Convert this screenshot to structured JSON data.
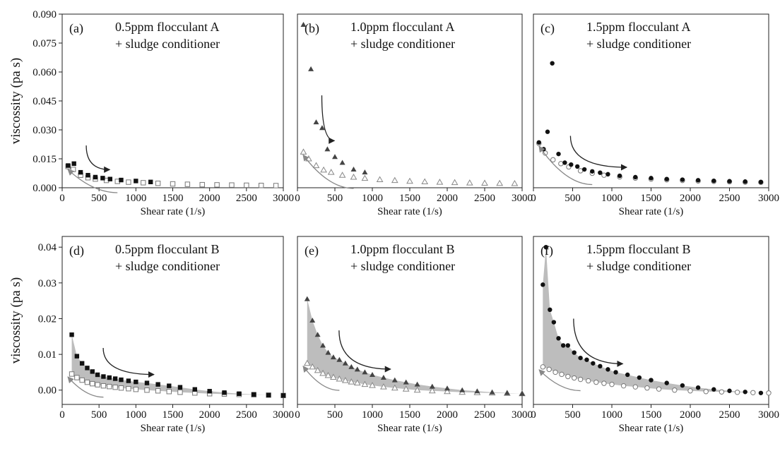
{
  "chart_data": [
    {
      "type": "scatter",
      "panel_label": "(a)",
      "annotation": [
        "0.5ppm flocculant A",
        "+ sludge conditioner"
      ],
      "xlabel": "Shear rate (1/s)",
      "ylabel": "viscossity (pa s)",
      "xlim": [
        0,
        3000
      ],
      "ylim": [
        0,
        0.09
      ],
      "xticks": [
        "0",
        "500",
        "1000",
        "1500",
        "2000",
        "2500",
        "3000"
      ],
      "yticks": [
        "0.000",
        "0.015",
        "0.030",
        "0.045",
        "0.060",
        "0.075",
        "0.090"
      ],
      "series": [
        {
          "marker": "filled-square",
          "x": [
            80,
            160,
            250,
            350,
            450,
            550,
            650,
            800,
            1000,
            1200
          ],
          "y": [
            0.0115,
            0.0125,
            0.008,
            0.0065,
            0.0055,
            0.005,
            0.0045,
            0.004,
            0.0035,
            0.003
          ]
        },
        {
          "marker": "open-square",
          "x": [
            80,
            150,
            250,
            350,
            450,
            600,
            750,
            900,
            1100,
            1300,
            1500,
            1700,
            1900,
            2100,
            2300,
            2500,
            2700,
            2900
          ],
          "y": [
            0.011,
            0.0095,
            0.0065,
            0.0052,
            0.0045,
            0.0038,
            0.0033,
            0.0029,
            0.0026,
            0.0023,
            0.002,
            0.0018,
            0.0016,
            0.0015,
            0.0014,
            0.0013,
            0.0012,
            0.0011
          ]
        }
      ],
      "arrows": [
        "increasing",
        "decreasing"
      ],
      "shaded": false
    },
    {
      "type": "scatter",
      "panel_label": "(b)",
      "annotation": [
        "1.0ppm flocculant A",
        "+ sludge conditioner"
      ],
      "xlabel": "Shear rate (1/s)",
      "ylabel": "",
      "xlim": [
        0,
        3000
      ],
      "ylim": [
        0,
        0.09
      ],
      "xticks": [
        "0",
        "500",
        "1000",
        "1500",
        "2000",
        "2500",
        "3000"
      ],
      "yticks": [],
      "series": [
        {
          "marker": "filled-triangle",
          "x": [
            80,
            180,
            250,
            330,
            400,
            500,
            600,
            750,
            900
          ],
          "y": [
            0.0845,
            0.0615,
            0.034,
            0.031,
            0.02,
            0.016,
            0.013,
            0.0095,
            0.008
          ]
        },
        {
          "marker": "open-triangle",
          "x": [
            80,
            150,
            250,
            350,
            450,
            600,
            750,
            900,
            1100,
            1300,
            1500,
            1700,
            1900,
            2100,
            2300,
            2500,
            2700,
            2900
          ],
          "y": [
            0.0185,
            0.015,
            0.0115,
            0.0092,
            0.008,
            0.0065,
            0.0055,
            0.0049,
            0.0042,
            0.0038,
            0.0034,
            0.0031,
            0.0029,
            0.0027,
            0.0025,
            0.0024,
            0.0023,
            0.0022
          ]
        }
      ],
      "arrows": [
        "increasing",
        "decreasing"
      ],
      "shaded": false
    },
    {
      "type": "scatter",
      "panel_label": "(c)",
      "annotation": [
        "1.5ppm flocculant A",
        "+ sludge conditioner"
      ],
      "xlabel": "Shear rate (1/s)",
      "ylabel": "",
      "xlim": [
        0,
        3000
      ],
      "ylim": [
        0,
        0.09
      ],
      "xticks": [
        "0",
        "500",
        "1000",
        "1500",
        "2000",
        "2500",
        "3000"
      ],
      "yticks": [],
      "series": [
        {
          "marker": "filled-circle",
          "x": [
            70,
            130,
            180,
            240,
            320,
            400,
            480,
            560,
            650,
            750,
            850,
            950,
            1100,
            1300,
            1500,
            1700,
            1900,
            2100,
            2300,
            2500,
            2700,
            2900
          ],
          "y": [
            0.0235,
            0.02,
            0.029,
            0.0645,
            0.0175,
            0.013,
            0.012,
            0.011,
            0.0095,
            0.0085,
            0.0078,
            0.007,
            0.0062,
            0.0055,
            0.005,
            0.0045,
            0.0042,
            0.0039,
            0.0036,
            0.0034,
            0.0032,
            0.003
          ]
        },
        {
          "marker": "open-circle",
          "x": [
            70,
            150,
            250,
            350,
            450,
            600,
            750,
            900,
            1100,
            1300,
            1500,
            1700,
            1900,
            2100,
            2300,
            2500,
            2700,
            2900
          ],
          "y": [
            0.023,
            0.018,
            0.0145,
            0.0125,
            0.0108,
            0.0088,
            0.0075,
            0.0065,
            0.0056,
            0.005,
            0.0045,
            0.0041,
            0.0038,
            0.0035,
            0.0033,
            0.0031,
            0.0029,
            0.0028
          ]
        }
      ],
      "arrows": [
        "increasing",
        "decreasing"
      ],
      "shaded": false
    },
    {
      "type": "scatter",
      "panel_label": "(d)",
      "annotation": [
        "0.5ppm flocculant B",
        "+ sludge conditioner"
      ],
      "xlabel": "Shear rate (1/s)",
      "ylabel": "viscossity (pa s)",
      "xlim": [
        0,
        3000
      ],
      "ylim": [
        -0.004,
        0.043
      ],
      "xticks": [
        "0",
        "500",
        "1000",
        "1500",
        "2000",
        "2500",
        "3000"
      ],
      "yticks": [
        "0.00",
        "0.01",
        "0.02",
        "0.03",
        "0.04"
      ],
      "series": [
        {
          "marker": "filled-square",
          "x": [
            130,
            200,
            270,
            340,
            410,
            480,
            560,
            640,
            720,
            800,
            900,
            1000,
            1150,
            1300,
            1450,
            1600,
            1800,
            2000,
            2200,
            2400,
            2600,
            2800,
            3000
          ],
          "y": [
            0.0155,
            0.0095,
            0.0075,
            0.0062,
            0.0052,
            0.0043,
            0.0038,
            0.0035,
            0.0032,
            0.0029,
            0.0026,
            0.0023,
            0.002,
            0.0016,
            0.0012,
            0.0008,
            0.0002,
            -0.0003,
            -0.0007,
            -0.001,
            -0.0012,
            -0.0014,
            -0.0015
          ]
        },
        {
          "marker": "open-square",
          "x": [
            130,
            200,
            270,
            340,
            410,
            480,
            560,
            640,
            720,
            800,
            900,
            1000,
            1150,
            1300,
            1450,
            1600,
            1800,
            2000,
            2200,
            2400,
            2600,
            2800,
            3000
          ],
          "y": [
            0.0045,
            0.0035,
            0.0028,
            0.0022,
            0.0018,
            0.0015,
            0.0012,
            0.001,
            0.0008,
            0.0006,
            0.0004,
            0.0002,
            0.0,
            -0.0002,
            -0.0004,
            -0.0006,
            -0.0008,
            -0.001,
            -0.0011,
            -0.0012,
            -0.0013,
            -0.0014,
            -0.0015
          ]
        }
      ],
      "arrows": [
        "increasing",
        "decreasing"
      ],
      "shaded": true
    },
    {
      "type": "scatter",
      "panel_label": "(e)",
      "annotation": [
        "1.0ppm flocculant B",
        "+ sludge conditioner"
      ],
      "xlabel": "Shear rate (1/s)",
      "ylabel": "",
      "xlim": [
        0,
        3000
      ],
      "ylim": [
        -0.004,
        0.043
      ],
      "xticks": [
        "0",
        "500",
        "1000",
        "1500",
        "2000",
        "2500",
        "3000"
      ],
      "yticks": [],
      "series": [
        {
          "marker": "filled-triangle",
          "x": [
            130,
            200,
            270,
            340,
            410,
            480,
            560,
            640,
            720,
            800,
            900,
            1000,
            1150,
            1300,
            1450,
            1600,
            1800,
            2000,
            2200,
            2400,
            2600,
            2800,
            3000
          ],
          "y": [
            0.0255,
            0.0195,
            0.0155,
            0.0125,
            0.0105,
            0.0092,
            0.0085,
            0.0075,
            0.0065,
            0.0058,
            0.005,
            0.0043,
            0.0035,
            0.0028,
            0.0022,
            0.0016,
            0.001,
            0.0005,
            0.0,
            -0.0003,
            -0.0006,
            -0.0008,
            -0.001
          ]
        },
        {
          "marker": "open-triangle",
          "x": [
            130,
            200,
            270,
            340,
            410,
            480,
            560,
            640,
            720,
            800,
            900,
            1000,
            1150,
            1300,
            1450,
            1600,
            1800,
            2000,
            2200,
            2400,
            2600,
            2800,
            3000
          ],
          "y": [
            0.0075,
            0.0065,
            0.0055,
            0.0047,
            0.0041,
            0.0036,
            0.0031,
            0.0027,
            0.0023,
            0.002,
            0.0016,
            0.0013,
            0.0009,
            0.0006,
            0.0003,
            0.0,
            -0.0002,
            -0.0004,
            -0.0006,
            -0.0007,
            -0.0008,
            -0.0009,
            -0.001
          ]
        }
      ],
      "arrows": [
        "increasing",
        "decreasing"
      ],
      "shaded": true
    },
    {
      "type": "scatter",
      "panel_label": "(f)",
      "annotation": [
        "1.5ppm flocculant B",
        "+ sludge conditioner"
      ],
      "xlabel": "Shear rate (1/s)",
      "ylabel": "",
      "xlim": [
        0,
        3000
      ],
      "ylim": [
        -0.004,
        0.043
      ],
      "xticks": [
        "0",
        "500",
        "1000",
        "1500",
        "2000",
        "2500",
        "3000"
      ],
      "yticks": [],
      "series": [
        {
          "marker": "filled-circle",
          "x": [
            120,
            160,
            210,
            260,
            320,
            380,
            440,
            520,
            600,
            680,
            760,
            850,
            950,
            1050,
            1200,
            1350,
            1500,
            1700,
            1900,
            2100,
            2300,
            2500,
            2700,
            2900
          ],
          "y": [
            0.0295,
            0.04,
            0.0225,
            0.019,
            0.0145,
            0.0125,
            0.0125,
            0.0105,
            0.009,
            0.0085,
            0.0075,
            0.0067,
            0.0058,
            0.005,
            0.0043,
            0.0035,
            0.0028,
            0.002,
            0.0013,
            0.0007,
            0.0002,
            -0.0002,
            -0.0005,
            -0.0008
          ]
        },
        {
          "marker": "open-circle",
          "x": [
            120,
            200,
            280,
            360,
            440,
            520,
            600,
            700,
            800,
            900,
            1000,
            1150,
            1300,
            1450,
            1600,
            1800,
            2000,
            2200,
            2400,
            2600,
            2800,
            3000
          ],
          "y": [
            0.0065,
            0.0058,
            0.005,
            0.0044,
            0.0038,
            0.0034,
            0.003,
            0.0026,
            0.0022,
            0.0019,
            0.0016,
            0.0012,
            0.0009,
            0.0006,
            0.0003,
            0.0,
            -0.0002,
            -0.0004,
            -0.0005,
            -0.0006,
            -0.0007,
            -0.0008
          ]
        }
      ],
      "arrows": [
        "increasing",
        "decreasing"
      ],
      "shaded": true
    }
  ]
}
